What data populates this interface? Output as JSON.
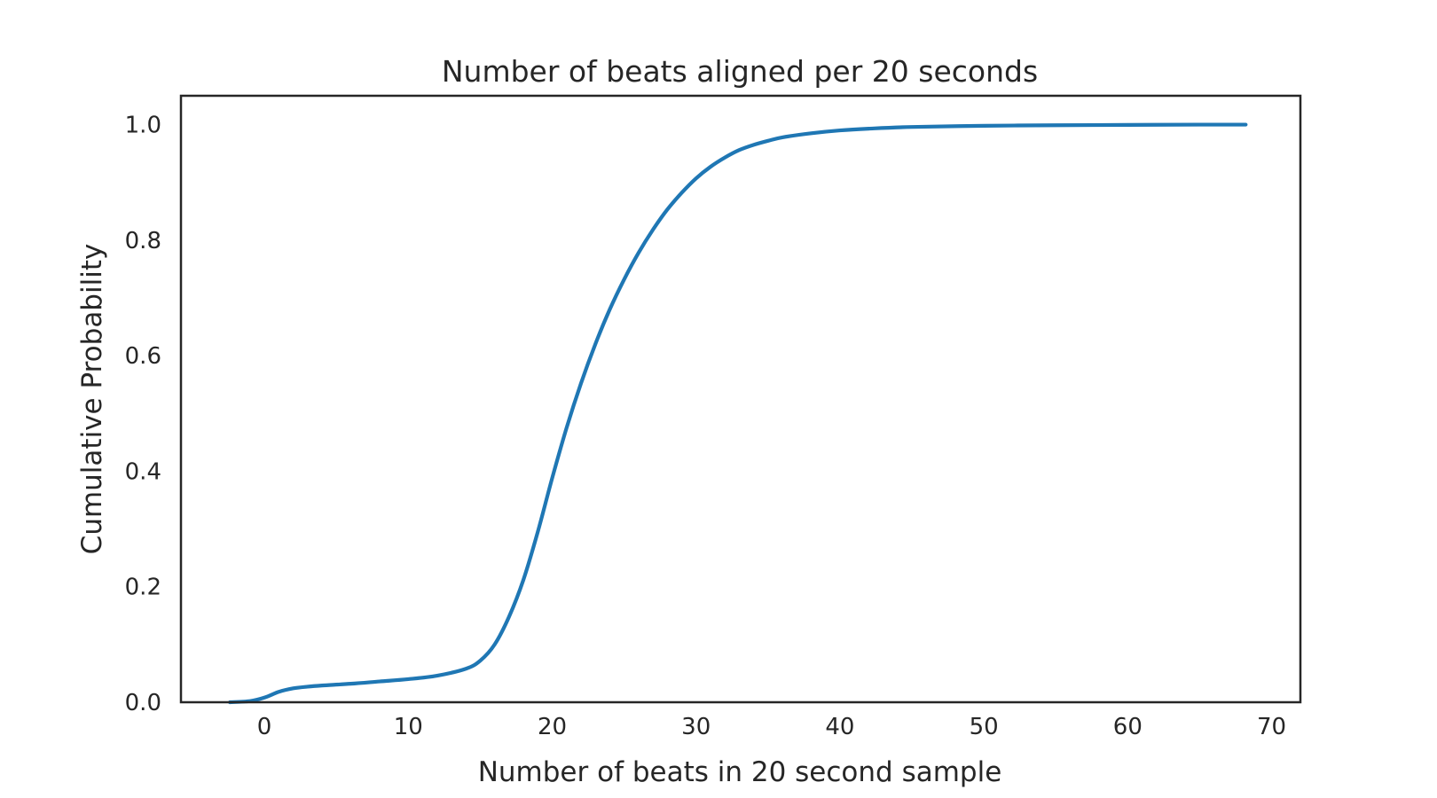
{
  "chart_data": {
    "type": "line",
    "title": "Number of beats aligned per 20 seconds",
    "xlabel": "Number of beats in 20 second sample",
    "ylabel": "Cumulative Probability",
    "xlim": [
      -5.8,
      72.0
    ],
    "ylim": [
      0.0,
      1.05
    ],
    "x_ticks": [
      0,
      10,
      20,
      30,
      40,
      50,
      60,
      70
    ],
    "x_tick_labels": [
      "0",
      "10",
      "20",
      "30",
      "40",
      "50",
      "60",
      "70"
    ],
    "y_ticks": [
      0.0,
      0.2,
      0.4,
      0.6,
      0.8,
      1.0
    ],
    "y_tick_labels": [
      "0.0",
      "0.2",
      "0.4",
      "0.6",
      "0.8",
      "1.0"
    ],
    "grid": false,
    "legend": "none",
    "series": [
      {
        "color": "#1f77b4",
        "x": [
          -2.4,
          -1.0,
          0.0,
          1.0,
          2.0,
          3.0,
          4.0,
          6.0,
          8.0,
          10.0,
          12.0,
          14.0,
          15.0,
          16.0,
          17.0,
          18.0,
          19.0,
          20.0,
          21.0,
          22.0,
          23.0,
          24.0,
          25.0,
          26.0,
          27.0,
          28.0,
          29.0,
          30.0,
          31.0,
          32.0,
          33.0,
          34.0,
          35.0,
          36.0,
          38.0,
          40.0,
          42.0,
          45.0,
          50.0,
          55.0,
          60.0,
          65.0,
          68.2
        ],
        "y": [
          0.0,
          0.002,
          0.008,
          0.018,
          0.024,
          0.027,
          0.029,
          0.032,
          0.036,
          0.04,
          0.046,
          0.058,
          0.072,
          0.1,
          0.148,
          0.212,
          0.295,
          0.388,
          0.475,
          0.552,
          0.62,
          0.68,
          0.732,
          0.778,
          0.818,
          0.853,
          0.882,
          0.907,
          0.927,
          0.943,
          0.956,
          0.965,
          0.972,
          0.978,
          0.985,
          0.99,
          0.993,
          0.996,
          0.998,
          0.999,
          0.9995,
          1.0,
          1.0
        ]
      }
    ]
  }
}
